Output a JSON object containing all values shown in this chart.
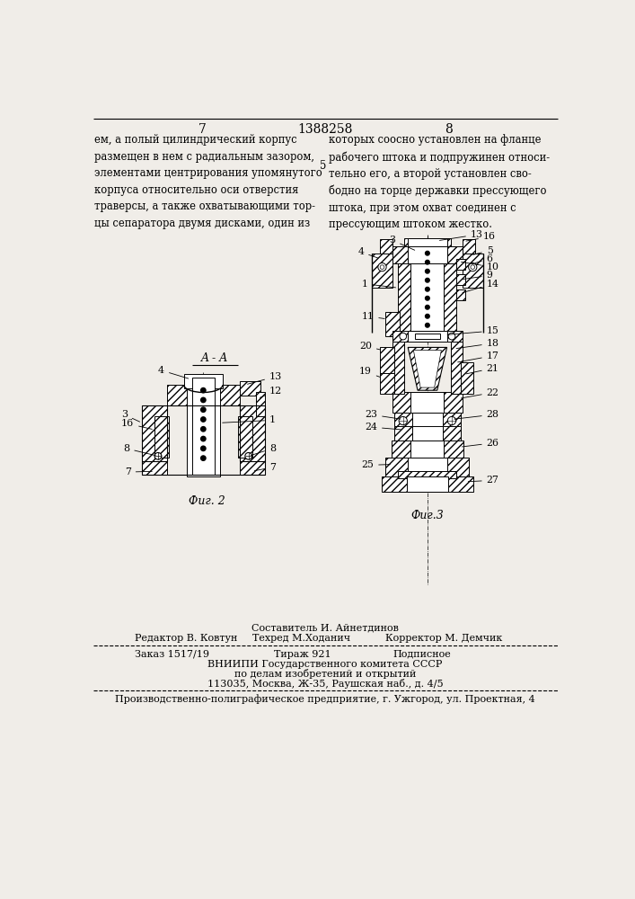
{
  "bg_color": "#f0ede8",
  "page_num_left": "7",
  "page_num_center": "1388258",
  "page_num_right": "8",
  "text_left": "ем, а полый цилиндрический корпус\nразмещен в нем с радиальным зазором,\nэлементами центрирования упомянутого\nкорпуса относительно оси отверстия\nтраверсы, а также охватывающими тор-\nцы сепаратора двумя дисками, один из",
  "text_right": "которых соосно установлен на фланце\nрабочего штока и подпружинен относи-\nтельно его, а второй установлен сво-\nбодно на торце державки прессующего\nштока, при этом охват соединен с\nпрессующим штоком жестко.",
  "line_number_5": "5",
  "fig2_label": "Τ˙г. 2",
  "fig3_label": "Τ˙г.3",
  "aa_label": "A - A",
  "footer_line1": "Составитель И. Айнетдинов",
  "footer_line2_1": "Редактор В. Ковтун",
  "footer_line2_2": "Техред М.Ходанич",
  "footer_line2_3": "Корректор М. Демчик",
  "footer_line3_1": "Заказ 1517/19",
  "footer_line3_2": "Тираж 921",
  "footer_line3_3": "Подписное",
  "footer_line4": "ВНИИПИ Государственного комитета СССР",
  "footer_line5": "по делам изобретений и открытий",
  "footer_line6": "113035, Москва, Ж-35, Раушская наб., д. 4/5",
  "footer_line7": "Производственно-полиграфическое предприятие, г. Ужгород, ул. Проектная, 4"
}
